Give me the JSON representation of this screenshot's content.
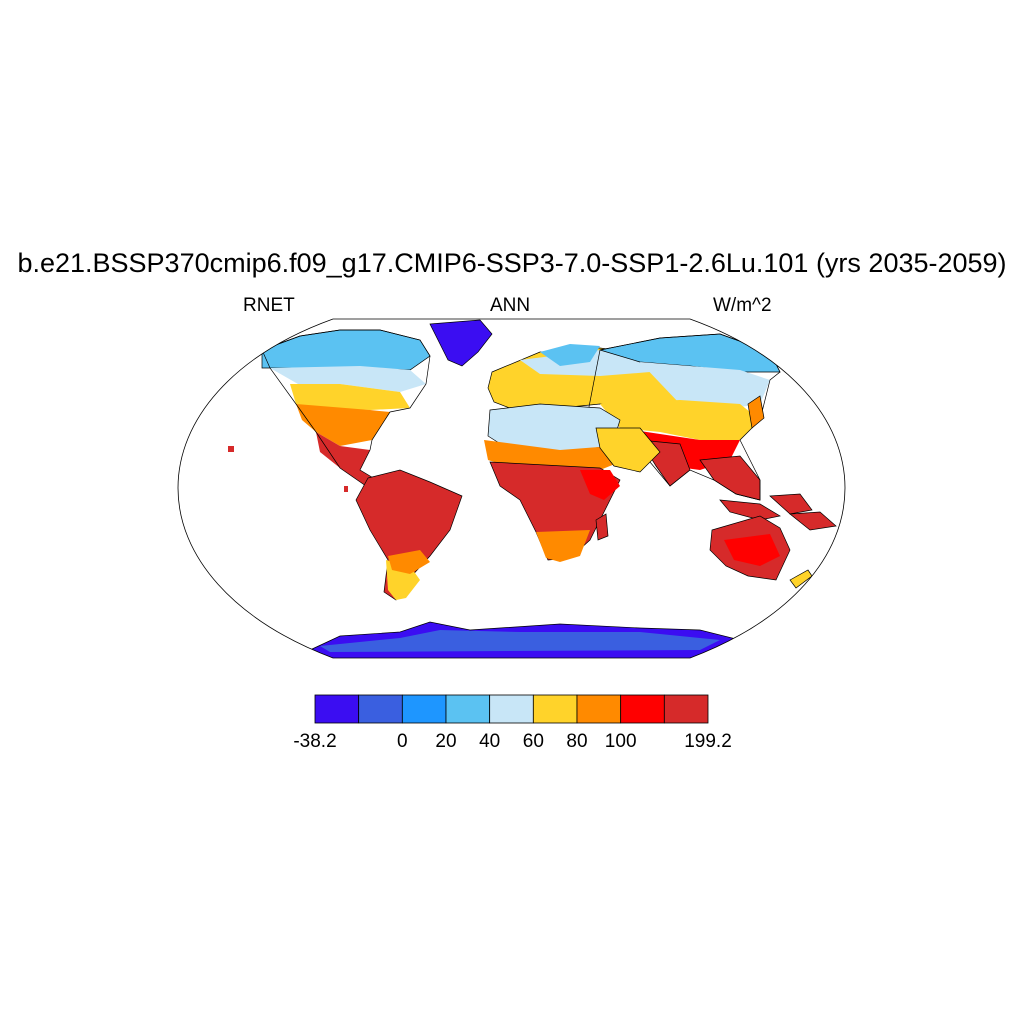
{
  "title": "b.e21.BSSP370cmip6.f09_g17.CMIP6-SSP3-7.0-SSP1-2.6Lu.101 (yrs 2035-2059)",
  "left_label": "RNET",
  "center_label": "ANN",
  "right_label": "W/m^2",
  "colorbar": {
    "colors": [
      "#3b0df2",
      "#3a5fe0",
      "#1e96ff",
      "#5bc2f2",
      "#c8e6f7",
      "#ffd32a",
      "#ff8a00",
      "#ff0000",
      "#d62a2a"
    ],
    "tick_labels": [
      {
        "text": "-38.2",
        "index": 0
      },
      {
        "text": "0",
        "index": 2
      },
      {
        "text": "20",
        "index": 3
      },
      {
        "text": "40",
        "index": 4
      },
      {
        "text": "60",
        "index": 5
      },
      {
        "text": "80",
        "index": 6
      },
      {
        "text": "100",
        "index": 7
      },
      {
        "text": "199.2",
        "index": 9
      }
    ]
  },
  "colors": {
    "ocean": "#ffffff",
    "outline": "#000000"
  }
}
